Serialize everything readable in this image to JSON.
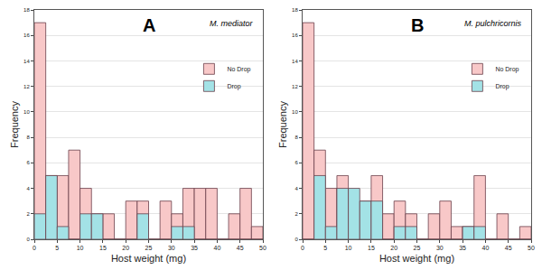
{
  "chart_data": [
    {
      "type": "histogram",
      "title": "A",
      "annotations": [
        "M. mediator"
      ],
      "x_label": "Host weight (mg)",
      "y_label": "Frequency",
      "bins": [
        0,
        2.5,
        5,
        7.5,
        10,
        12.5,
        15,
        17.5,
        20,
        22.5,
        25,
        27.5,
        30,
        32.5,
        35,
        37.5,
        40,
        42.5,
        45,
        47.5,
        50
      ],
      "series": [
        {
          "name": "No Drop",
          "color": "#f8c8c8",
          "values": [
            17,
            5,
            5,
            7,
            4,
            2,
            2,
            0,
            3,
            3,
            0,
            3,
            2,
            4,
            4,
            4,
            0,
            2,
            4,
            1
          ]
        },
        {
          "name": "Drop",
          "color": "#a3e2e6",
          "values": [
            2,
            5,
            1,
            0,
            2,
            2,
            0,
            0,
            0,
            2,
            0,
            0,
            1,
            1,
            0,
            0,
            0,
            0,
            0,
            0
          ]
        }
      ],
      "xlim": [
        0,
        50
      ],
      "xticks": [
        0,
        5,
        10,
        15,
        20,
        25,
        30,
        35,
        40,
        45,
        50
      ],
      "ylim": [
        0,
        18
      ],
      "yticks": [
        0,
        2,
        4,
        6,
        8,
        10,
        12,
        14,
        16,
        18
      ],
      "grid": true,
      "legend": "upper right"
    },
    {
      "type": "histogram",
      "title": "B",
      "annotations": [
        "M. pulchricornis"
      ],
      "x_label": "Host weight (mg)",
      "y_label": "Frequency",
      "bins": [
        0,
        2.5,
        5,
        7.5,
        10,
        12.5,
        15,
        17.5,
        20,
        22.5,
        25,
        27.5,
        30,
        32.5,
        35,
        37.5,
        40,
        42.5,
        45,
        47.5,
        50
      ],
      "series": [
        {
          "name": "No Drop",
          "color": "#f8c8c8",
          "values": [
            17,
            7,
            4,
            5,
            3,
            3,
            5,
            2,
            3,
            2,
            0,
            2,
            3,
            1,
            1,
            5,
            0,
            2,
            0,
            1
          ]
        },
        {
          "name": "Drop",
          "color": "#a3e2e6",
          "values": [
            0,
            5,
            1,
            4,
            4,
            3,
            3,
            0,
            1,
            1,
            0,
            0,
            0,
            0,
            1,
            1,
            0,
            0,
            0,
            0
          ]
        }
      ],
      "xlim": [
        0,
        50
      ],
      "xticks": [
        0,
        5,
        10,
        15,
        20,
        25,
        30,
        35,
        40,
        45,
        50
      ],
      "ylim": [
        0,
        18
      ],
      "yticks": [
        0,
        2,
        4,
        6,
        8,
        10,
        12,
        14,
        16,
        18
      ],
      "grid": true,
      "legend": "upper right"
    }
  ]
}
